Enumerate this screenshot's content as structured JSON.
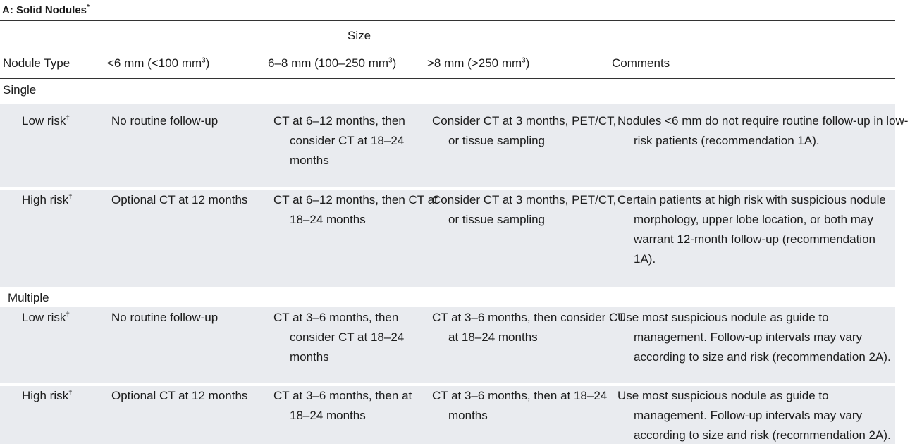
{
  "table": {
    "title": "A: Solid Nodules",
    "title_mark": "*",
    "size_header": "Size",
    "columns": {
      "nodule_type": "Nodule Type",
      "size_lt6": "<6 mm (<100 mm",
      "size_6_8": "6–8 mm (100–250 mm",
      "size_gt8": ">8 mm (>250 mm",
      "cube": "3",
      "close": ")",
      "comments": "Comments"
    },
    "sections": {
      "single": "Single",
      "multiple": "Multiple"
    },
    "risk_mark": "†",
    "rows": [
      {
        "label": "Low risk",
        "lt6": "No routine follow-up",
        "mid": "CT at 6–12 months, then consider CT at 18–24 months",
        "gt8": "Consider CT at 3 months, PET/CT, or tissue sampling",
        "comments": "Nodules <6 mm do not require routine follow-up in low-risk patients (recommendation 1A)."
      },
      {
        "label": "High risk",
        "lt6": "Optional CT at 12 months",
        "mid": "CT at 6–12 months, then CT at 18–24 months",
        "gt8": "Consider CT at 3 months, PET/CT, or tissue sampling",
        "comments": "Certain patients at high risk with suspicious nodule morphology, upper lobe location, or both may warrant 12-month follow-up (recommendation 1A)."
      },
      {
        "label": "Low risk",
        "lt6": "No routine follow-up",
        "mid": "CT at 3–6 months, then consider CT at 18–24 months",
        "gt8": "CT at 3–6 months, then consider CT at 18–24 months",
        "comments": "Use most suspicious nodule as guide to management. Follow-up intervals may vary according to size and risk (recommendation 2A)."
      },
      {
        "label": "High risk",
        "lt6": "Optional CT at 12 months",
        "mid": "CT at 3–6 months, then at 18–24 months",
        "gt8": "CT at 3–6 months, then at 18–24 months",
        "comments": "Use most suspicious nodule as guide to management. Follow-up intervals may vary according to size and risk (recommendation 2A)."
      }
    ]
  }
}
